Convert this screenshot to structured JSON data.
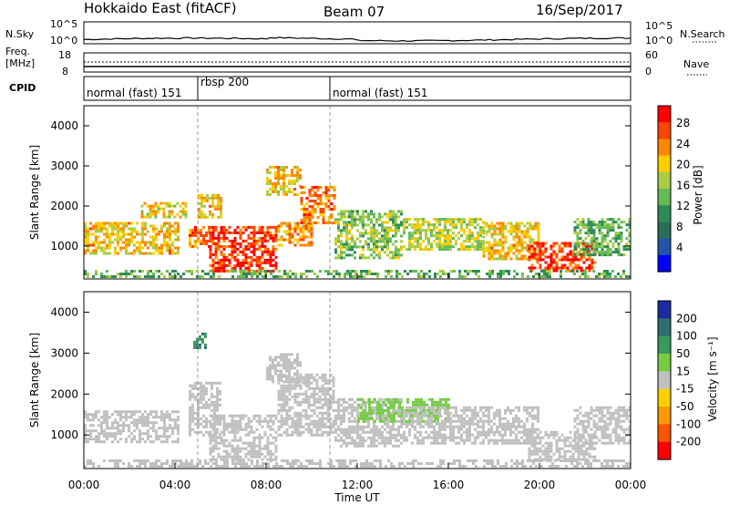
{
  "header": {
    "station": "Hokkaido East (fitACF)",
    "beam": "Beam 07",
    "date": "16/Sep/2017"
  },
  "noise_panel": {
    "left_label": "N.Sky",
    "left_ticks": [
      "10^5",
      "10^0"
    ],
    "right_label": "N.Search",
    "right_ticks": [
      "10^5",
      "10^0"
    ]
  },
  "freq_panel": {
    "label_line1": "Freq.",
    "label_line2": "[MHz]",
    "left_ticks": [
      "18",
      "8"
    ],
    "right_label": "Nave",
    "right_ticks": [
      "60",
      "0"
    ]
  },
  "cpid_panel": {
    "label": "CPID",
    "segments": [
      {
        "label": "normal (fast) 151",
        "start_hour": 0,
        "end_hour": 5.0
      },
      {
        "label": "rbsp 200",
        "start_hour": 5.0,
        "end_hour": 10.8
      },
      {
        "label": "normal (fast) 151",
        "start_hour": 10.8,
        "end_hour": 24
      }
    ]
  },
  "x_axis": {
    "label": "Time UT",
    "ticks": [
      "00:00",
      "04:00",
      "08:00",
      "12:00",
      "16:00",
      "20:00",
      "00:00"
    ]
  },
  "power_colorbar": {
    "label": "Power [dB]",
    "ticks": [
      "28",
      "24",
      "20",
      "16",
      "12",
      "8",
      "4"
    ],
    "colors": [
      "#ff0000",
      "#ff4400",
      "#ff8800",
      "#ffcc00",
      "#aacc44",
      "#66bb55",
      "#2e8b57",
      "#2a6e5a",
      "#2255aa",
      "#0000ff"
    ]
  },
  "velocity_colorbar": {
    "label": "Velocity [m s⁻¹]",
    "ticks": [
      "200",
      "100",
      "50",
      "15",
      "-15",
      "-50",
      "-100",
      "-200"
    ],
    "colors": [
      "#1c2ca0",
      "#2e6e70",
      "#3a9a5a",
      "#77cc44",
      "#c0c0c0",
      "#ffd000",
      "#ff9900",
      "#ff5500",
      "#ff0000"
    ]
  },
  "chart_data": [
    {
      "type": "heatmap",
      "title": "",
      "xlabel": "Time UT",
      "ylabel": "Slant Range [km]",
      "xlim": [
        0,
        24
      ],
      "ylim": [
        180,
        4500
      ],
      "yticks": [
        "1000",
        "2000",
        "3000",
        "4000"
      ],
      "colorbar": "Power [dB]",
      "regions": [
        {
          "x": [
            0.0,
            4.2
          ],
          "y": [
            800,
            1600
          ],
          "value": 22
        },
        {
          "x": [
            2.5,
            4.5
          ],
          "y": [
            1700,
            2100
          ],
          "value": 20
        },
        {
          "x": [
            4.6,
            5.6
          ],
          "y": [
            1000,
            1500
          ],
          "value": 26
        },
        {
          "x": [
            5.0,
            6.0
          ],
          "y": [
            1700,
            2300
          ],
          "value": 22
        },
        {
          "x": [
            5.5,
            8.5
          ],
          "y": [
            400,
            1500
          ],
          "value": 30
        },
        {
          "x": [
            8.5,
            10.0
          ],
          "y": [
            1000,
            1600
          ],
          "value": 24
        },
        {
          "x": [
            9.5,
            11.0
          ],
          "y": [
            1600,
            2500
          ],
          "value": 26
        },
        {
          "x": [
            8.0,
            9.5
          ],
          "y": [
            2300,
            3000
          ],
          "value": 22
        },
        {
          "x": [
            11.0,
            14.0
          ],
          "y": [
            700,
            1900
          ],
          "value": 16
        },
        {
          "x": [
            14.0,
            17.5
          ],
          "y": [
            900,
            1700
          ],
          "value": 18
        },
        {
          "x": [
            17.5,
            20.0
          ],
          "y": [
            700,
            1600
          ],
          "value": 22
        },
        {
          "x": [
            19.5,
            22.5
          ],
          "y": [
            400,
            1100
          ],
          "value": 30
        },
        {
          "x": [
            21.5,
            24.0
          ],
          "y": [
            800,
            1700
          ],
          "value": 14
        }
      ]
    },
    {
      "type": "heatmap",
      "title": "",
      "xlabel": "Time UT",
      "ylabel": "Slant Range [km]",
      "xlim": [
        0,
        24
      ],
      "ylim": [
        180,
        4500
      ],
      "yticks": [
        "1000",
        "2000",
        "3000",
        "4000"
      ],
      "colorbar": "Velocity [m s⁻¹]",
      "regions": [
        {
          "x": [
            0.0,
            4.2
          ],
          "y": [
            800,
            1600
          ],
          "value": 0
        },
        {
          "x": [
            4.6,
            6.0
          ],
          "y": [
            1000,
            2300
          ],
          "value": 0
        },
        {
          "x": [
            5.5,
            8.5
          ],
          "y": [
            400,
            1500
          ],
          "value": 0
        },
        {
          "x": [
            8.5,
            11.0
          ],
          "y": [
            1000,
            2500
          ],
          "value": 0
        },
        {
          "x": [
            8.0,
            9.5
          ],
          "y": [
            2300,
            3000
          ],
          "value": 0
        },
        {
          "x": [
            4.8,
            5.3
          ],
          "y": [
            3100,
            3500
          ],
          "value": 150
        },
        {
          "x": [
            11.0,
            14.0
          ],
          "y": [
            700,
            1900
          ],
          "value": 5
        },
        {
          "x": [
            12.0,
            16.0
          ],
          "y": [
            1300,
            1900
          ],
          "value": 60
        },
        {
          "x": [
            14.0,
            20.0
          ],
          "y": [
            800,
            1700
          ],
          "value": 0
        },
        {
          "x": [
            19.5,
            22.5
          ],
          "y": [
            400,
            1100
          ],
          "value": 0
        },
        {
          "x": [
            21.5,
            24.0
          ],
          "y": [
            800,
            1700
          ],
          "value": 0
        }
      ]
    }
  ]
}
